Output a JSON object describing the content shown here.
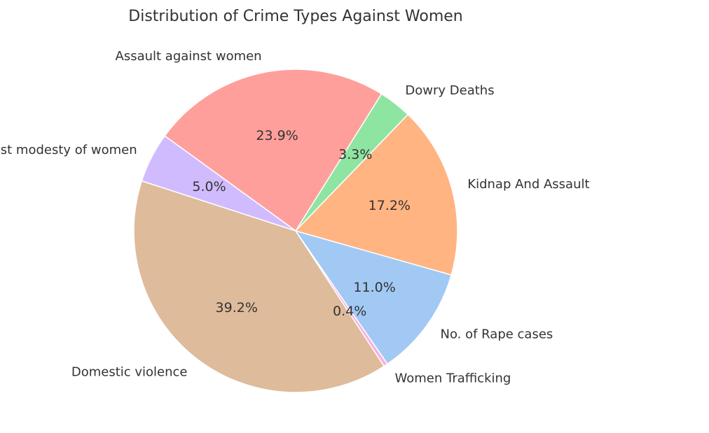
{
  "chart_data": {
    "type": "pie",
    "title": "Distribution of Crime Types Against Women",
    "start_angle_deg": 162,
    "direction": "counterclockwise",
    "slices": [
      {
        "label": "Domestic violence",
        "value": 39.2,
        "pct_label": "39.2%",
        "color": "#debb9b"
      },
      {
        "label": "Women Trafficking",
        "value": 0.4,
        "pct_label": "0.4%",
        "color": "#fab0e4"
      },
      {
        "label": "No. of Rape cases",
        "value": 11.0,
        "pct_label": "11.0%",
        "color": "#a1c9f4"
      },
      {
        "label": "Kidnap And Assault",
        "value": 17.2,
        "pct_label": "17.2%",
        "color": "#ffb482"
      },
      {
        "label": "Dowry Deaths",
        "value": 3.3,
        "pct_label": "3.3%",
        "color": "#8de5a1"
      },
      {
        "label": "Assault against women",
        "value": 23.9,
        "pct_label": "23.9%",
        "color": "#ff9f9b"
      },
      {
        "label": "Assault against modesty of women",
        "value": 5.0,
        "pct_label": "5.0%",
        "color": "#d0bbff"
      }
    ]
  }
}
